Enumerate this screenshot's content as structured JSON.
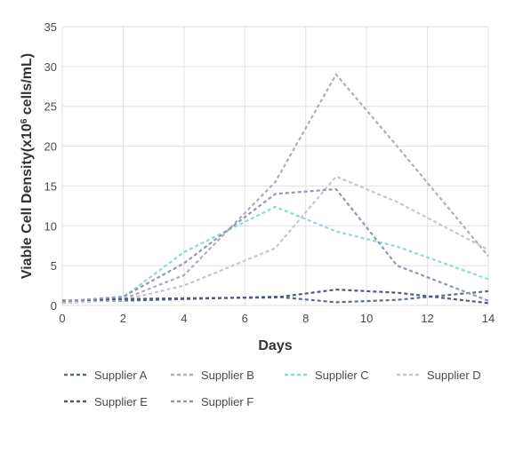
{
  "chart_data": {
    "type": "line",
    "xlabel": "Days",
    "ylabel_prefix": "Viable Cell Density(x10",
    "ylabel_sup": "6",
    "ylabel_suffix": " cells/mL)",
    "xlim": [
      0,
      14
    ],
    "ylim": [
      0,
      35
    ],
    "xticks": [
      0,
      2,
      4,
      6,
      8,
      10,
      12,
      14
    ],
    "yticks": [
      0,
      5,
      10,
      15,
      20,
      25,
      30,
      35
    ],
    "grid": true,
    "legend_position": "bottom",
    "series": [
      {
        "name": "Supplier A",
        "color": "#5b6e86",
        "x": [
          0,
          2,
          4,
          7,
          9,
          11,
          14
        ],
        "y": [
          0.5,
          0.6,
          0.8,
          1.1,
          0.4,
          0.7,
          1.8
        ]
      },
      {
        "name": "Supplier B",
        "color": "#b5a9bb",
        "x": [
          0,
          2,
          4,
          7,
          9,
          11,
          14
        ],
        "y": [
          0.3,
          0.8,
          3.8,
          15.5,
          29.0,
          20.0,
          6.2
        ]
      },
      {
        "name": "Supplier C",
        "color": "#8fd8d8",
        "x": [
          0,
          2,
          4,
          7,
          9,
          11,
          14
        ],
        "y": [
          0.4,
          1.0,
          6.7,
          12.4,
          9.3,
          7.4,
          3.3
        ]
      },
      {
        "name": "Supplier D",
        "color": "#c8c6cc",
        "x": [
          0,
          2,
          4,
          7,
          9,
          11,
          14
        ],
        "y": [
          0.3,
          0.7,
          2.5,
          7.2,
          16.2,
          13.0,
          7.0
        ]
      },
      {
        "name": "Supplier E",
        "color": "#4f5b78",
        "x": [
          0,
          2,
          4,
          7,
          9,
          11,
          14
        ],
        "y": [
          0.6,
          0.8,
          0.9,
          1.0,
          2.0,
          1.6,
          0.3
        ]
      },
      {
        "name": "Supplier F",
        "color": "#8e9ab3",
        "x": [
          0,
          2,
          4,
          7,
          9,
          11,
          14
        ],
        "y": [
          0.5,
          1.1,
          5.3,
          14.0,
          14.6,
          5.0,
          0.6
        ]
      }
    ]
  }
}
